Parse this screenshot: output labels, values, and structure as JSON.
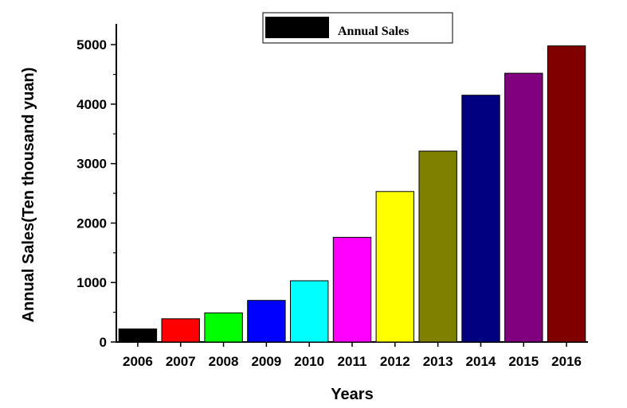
{
  "chart_data": {
    "type": "bar",
    "xlabel": "Years",
    "ylabel": "Annual Sales(Ten thousand yuan)",
    "categories": [
      "2006",
      "2007",
      "2008",
      "2009",
      "2010",
      "2011",
      "2012",
      "2013",
      "2014",
      "2015",
      "2016"
    ],
    "series": [
      {
        "name": "Annual Sales",
        "values": [
          220,
          390,
          490,
          700,
          1030,
          1760,
          2530,
          3210,
          4150,
          4520,
          4980
        ]
      }
    ],
    "bar_colors": [
      "#000000",
      "#ff0000",
      "#00ff00",
      "#0000ff",
      "#00ffff",
      "#ff00ff",
      "#ffff00",
      "#808000",
      "#000080",
      "#800080",
      "#800000"
    ],
    "yticks": [
      0,
      1000,
      2000,
      3000,
      4000,
      5000
    ],
    "ylim": [
      0,
      5350
    ],
    "grid": false,
    "legend": {
      "position": "top-center",
      "swatch_color": "#000000"
    }
  }
}
